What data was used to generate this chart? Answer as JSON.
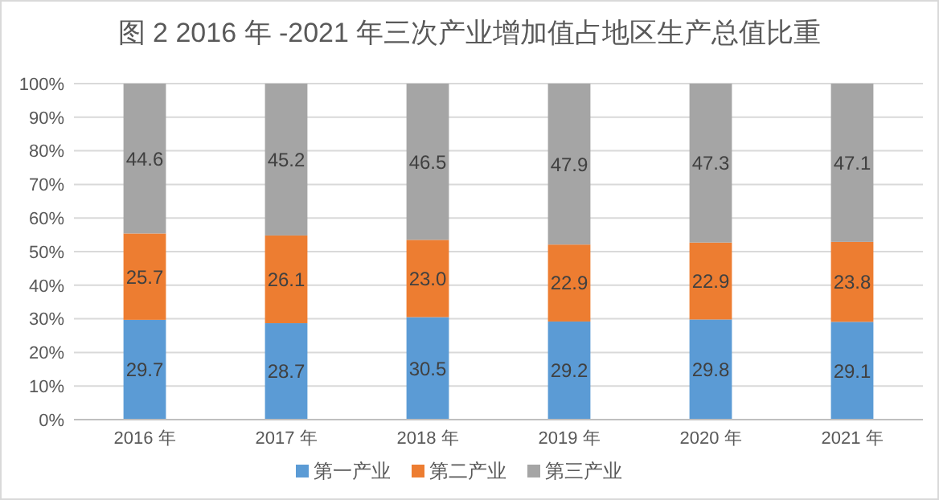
{
  "chart_data": {
    "type": "bar",
    "stacked": true,
    "title": "图 2  2016 年 -2021 年三次产业增加值占地区生产总值比重",
    "categories": [
      "2016 年",
      "2017 年",
      "2018 年",
      "2019 年",
      "2020 年",
      "2021 年"
    ],
    "series": [
      {
        "name": "第一产业",
        "color": "#5b9bd5",
        "values": [
          29.7,
          28.7,
          30.5,
          29.2,
          29.8,
          29.1
        ],
        "value_labels": [
          "29.7",
          "28.7",
          "30.5",
          "29.2",
          "29.8",
          "29.1"
        ]
      },
      {
        "name": "第二产业",
        "color": "#ed7d31",
        "values": [
          25.7,
          26.1,
          23.0,
          22.9,
          22.9,
          23.8
        ],
        "value_labels": [
          "25.7",
          "26.1",
          "23.0",
          "22.9",
          "22.9",
          "23.8"
        ]
      },
      {
        "name": "第三产业",
        "color": "#a5a5a5",
        "values": [
          44.6,
          45.2,
          46.5,
          47.9,
          47.3,
          47.1
        ],
        "value_labels": [
          "44.6",
          "45.2",
          "46.5",
          "47.9",
          "47.3",
          "47.1"
        ]
      }
    ],
    "ylim": [
      0,
      100
    ],
    "yticks": [
      {
        "value": 0,
        "label": "0%"
      },
      {
        "value": 10,
        "label": "10%"
      },
      {
        "value": 20,
        "label": "20%"
      },
      {
        "value": 30,
        "label": "30%"
      },
      {
        "value": 40,
        "label": "40%"
      },
      {
        "value": 50,
        "label": "50%"
      },
      {
        "value": 60,
        "label": "60%"
      },
      {
        "value": 70,
        "label": "70%"
      },
      {
        "value": 80,
        "label": "80%"
      },
      {
        "value": 90,
        "label": "90%"
      },
      {
        "value": 100,
        "label": "100%"
      }
    ],
    "grid": "y",
    "legend": "bottom"
  }
}
